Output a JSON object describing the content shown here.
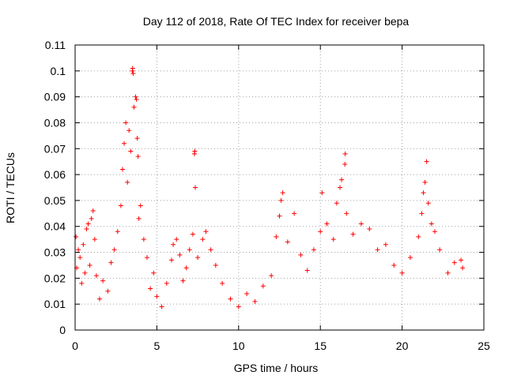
{
  "chart_data": {
    "type": "scatter",
    "title": "Day 112 of 2018, Rate Of TEC Index for receiver bepa",
    "xlabel": "GPS time / hours",
    "ylabel": "ROTI / TECUs",
    "xlim": [
      0,
      25
    ],
    "ylim": [
      0,
      0.11
    ],
    "xticks": [
      0,
      5,
      10,
      15,
      20,
      25
    ],
    "xtick_labels": [
      "0",
      "5",
      "10",
      "15",
      "20",
      "25"
    ],
    "yticks": [
      0,
      0.01,
      0.02,
      0.03,
      0.04,
      0.05,
      0.06,
      0.07,
      0.08,
      0.09,
      0.1,
      0.11
    ],
    "ytick_labels": [
      "0",
      "0.01",
      "0.02",
      "0.03",
      "0.04",
      "0.05",
      "0.06",
      "0.07",
      "0.08",
      "0.09",
      "0.1",
      "0.11"
    ],
    "grid": true,
    "marker": "+",
    "color": "#ff0000",
    "series": [
      {
        "name": "ROTI",
        "points": [
          [
            0.05,
            0.036
          ],
          [
            0.1,
            0.024
          ],
          [
            0.2,
            0.031
          ],
          [
            0.3,
            0.028
          ],
          [
            0.4,
            0.018
          ],
          [
            0.5,
            0.033
          ],
          [
            0.6,
            0.022
          ],
          [
            0.7,
            0.039
          ],
          [
            0.8,
            0.041
          ],
          [
            0.9,
            0.025
          ],
          [
            1.0,
            0.043
          ],
          [
            1.1,
            0.046
          ],
          [
            1.2,
            0.035
          ],
          [
            1.3,
            0.021
          ],
          [
            1.5,
            0.012
          ],
          [
            1.7,
            0.019
          ],
          [
            2.0,
            0.015
          ],
          [
            2.2,
            0.026
          ],
          [
            2.4,
            0.031
          ],
          [
            2.6,
            0.038
          ],
          [
            2.8,
            0.048
          ],
          [
            2.9,
            0.062
          ],
          [
            3.0,
            0.072
          ],
          [
            3.1,
            0.08
          ],
          [
            3.2,
            0.057
          ],
          [
            3.3,
            0.077
          ],
          [
            3.4,
            0.069
          ],
          [
            3.5,
            0.1
          ],
          [
            3.52,
            0.101
          ],
          [
            3.55,
            0.099
          ],
          [
            3.6,
            0.086
          ],
          [
            3.7,
            0.09
          ],
          [
            3.75,
            0.089
          ],
          [
            3.8,
            0.074
          ],
          [
            3.85,
            0.067
          ],
          [
            3.9,
            0.043
          ],
          [
            4.0,
            0.048
          ],
          [
            4.2,
            0.035
          ],
          [
            4.4,
            0.028
          ],
          [
            4.6,
            0.016
          ],
          [
            4.8,
            0.022
          ],
          [
            5.0,
            0.013
          ],
          [
            5.3,
            0.009
          ],
          [
            5.6,
            0.018
          ],
          [
            5.9,
            0.027
          ],
          [
            6.0,
            0.033
          ],
          [
            6.2,
            0.035
          ],
          [
            6.4,
            0.029
          ],
          [
            6.6,
            0.019
          ],
          [
            6.8,
            0.024
          ],
          [
            7.0,
            0.031
          ],
          [
            7.2,
            0.037
          ],
          [
            7.3,
            0.068
          ],
          [
            7.32,
            0.069
          ],
          [
            7.35,
            0.055
          ],
          [
            7.5,
            0.028
          ],
          [
            7.8,
            0.035
          ],
          [
            8.0,
            0.038
          ],
          [
            8.3,
            0.031
          ],
          [
            8.6,
            0.025
          ],
          [
            9.0,
            0.018
          ],
          [
            9.5,
            0.012
          ],
          [
            10.0,
            0.009
          ],
          [
            10.5,
            0.014
          ],
          [
            11.0,
            0.011
          ],
          [
            11.5,
            0.017
          ],
          [
            12.0,
            0.021
          ],
          [
            12.3,
            0.036
          ],
          [
            12.5,
            0.044
          ],
          [
            12.6,
            0.05
          ],
          [
            12.7,
            0.053
          ],
          [
            13.0,
            0.034
          ],
          [
            13.4,
            0.045
          ],
          [
            13.8,
            0.029
          ],
          [
            14.2,
            0.023
          ],
          [
            14.6,
            0.031
          ],
          [
            15.0,
            0.038
          ],
          [
            15.1,
            0.053
          ],
          [
            15.4,
            0.041
          ],
          [
            15.8,
            0.035
          ],
          [
            16.0,
            0.049
          ],
          [
            16.2,
            0.055
          ],
          [
            16.3,
            0.058
          ],
          [
            16.5,
            0.064
          ],
          [
            16.52,
            0.068
          ],
          [
            16.6,
            0.045
          ],
          [
            17.0,
            0.037
          ],
          [
            17.5,
            0.041
          ],
          [
            18.0,
            0.039
          ],
          [
            18.5,
            0.031
          ],
          [
            19.0,
            0.033
          ],
          [
            19.5,
            0.025
          ],
          [
            20.0,
            0.022
          ],
          [
            20.5,
            0.028
          ],
          [
            21.0,
            0.036
          ],
          [
            21.2,
            0.045
          ],
          [
            21.3,
            0.053
          ],
          [
            21.4,
            0.057
          ],
          [
            21.5,
            0.065
          ],
          [
            21.6,
            0.049
          ],
          [
            21.8,
            0.041
          ],
          [
            22.0,
            0.038
          ],
          [
            22.3,
            0.031
          ],
          [
            22.8,
            0.022
          ],
          [
            23.2,
            0.026
          ],
          [
            23.6,
            0.027
          ],
          [
            23.7,
            0.024
          ]
        ]
      }
    ]
  }
}
